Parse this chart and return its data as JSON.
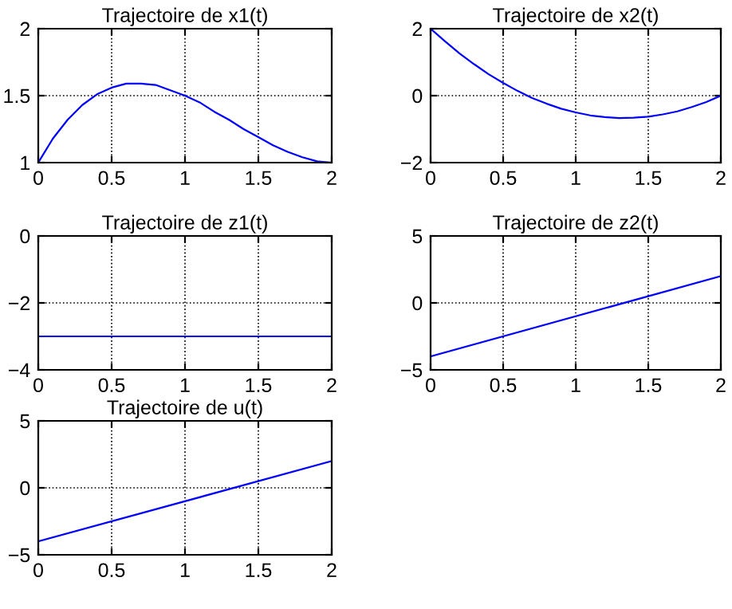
{
  "chart_data": [
    {
      "type": "line",
      "title": "Trajectoire de x1(t)",
      "x": [
        0,
        0.1,
        0.2,
        0.3,
        0.4,
        0.5,
        0.6,
        0.7,
        0.8,
        0.9,
        1.0,
        1.1,
        1.2,
        1.3,
        1.4,
        1.5,
        1.6,
        1.7,
        1.8,
        1.9,
        2.0
      ],
      "series": [
        {
          "color": "#0000ff",
          "values": [
            1,
            1.18,
            1.32,
            1.43,
            1.51,
            1.56,
            1.59,
            1.59,
            1.58,
            1.54,
            1.5,
            1.45,
            1.38,
            1.32,
            1.25,
            1.19,
            1.13,
            1.08,
            1.04,
            1.01,
            1
          ]
        }
      ],
      "xlim": [
        0,
        2
      ],
      "xticks": [
        0,
        0.5,
        1,
        1.5,
        2
      ],
      "ylim": [
        1,
        2
      ],
      "yticks": [
        1,
        1.5,
        2
      ],
      "grid": true,
      "line_style": "solid",
      "marker": "none",
      "legend": false
    },
    {
      "type": "line",
      "title": "Trajectoire de x2(t)",
      "x": [
        0,
        0.1,
        0.2,
        0.3,
        0.4,
        0.5,
        0.6,
        0.7,
        0.8,
        0.9,
        1.0,
        1.1,
        1.2,
        1.3,
        1.4,
        1.5,
        1.6,
        1.7,
        1.8,
        1.9,
        2.0
      ],
      "series": [
        {
          "color": "#0000ff",
          "values": [
            2,
            1.62,
            1.26,
            0.94,
            0.64,
            0.38,
            0.14,
            -0.07,
            -0.24,
            -0.39,
            -0.5,
            -0.59,
            -0.64,
            -0.67,
            -0.66,
            -0.63,
            -0.56,
            -0.47,
            -0.34,
            -0.19,
            0
          ]
        }
      ],
      "xlim": [
        0,
        2
      ],
      "xticks": [
        0,
        0.5,
        1,
        1.5,
        2
      ],
      "ylim": [
        -2,
        2
      ],
      "yticks": [
        {
          "value": -2,
          "label": "−2"
        },
        0,
        2
      ],
      "grid": true,
      "line_style": "solid",
      "marker": "none",
      "legend": false
    },
    {
      "type": "line",
      "title": "Trajectoire de z1(t)",
      "x": [
        0,
        2
      ],
      "series": [
        {
          "color": "#0000ff",
          "values": [
            -3,
            -3
          ]
        }
      ],
      "xlim": [
        0,
        2
      ],
      "xticks": [
        0,
        0.5,
        1,
        1.5,
        2
      ],
      "ylim": [
        -4,
        0
      ],
      "yticks": [
        {
          "value": -4,
          "label": "−4"
        },
        {
          "value": -2,
          "label": "−2"
        },
        0
      ],
      "grid": true,
      "line_style": "solid",
      "marker": "none",
      "legend": false
    },
    {
      "type": "line",
      "title": "Trajectoire de z2(t)",
      "x": [
        0,
        2
      ],
      "series": [
        {
          "color": "#0000ff",
          "values": [
            -4,
            2
          ]
        }
      ],
      "xlim": [
        0,
        2
      ],
      "xticks": [
        0,
        0.5,
        1,
        1.5,
        2
      ],
      "ylim": [
        -5,
        5
      ],
      "yticks": [
        {
          "value": -5,
          "label": "−5"
        },
        0,
        5
      ],
      "grid": true,
      "line_style": "solid",
      "marker": "none",
      "legend": false
    },
    {
      "type": "line",
      "title": "Trajectoire de u(t)",
      "x": [
        0,
        2
      ],
      "series": [
        {
          "color": "#0000ff",
          "values": [
            -4,
            2
          ]
        }
      ],
      "xlim": [
        0,
        2
      ],
      "xticks": [
        0,
        0.5,
        1,
        1.5,
        2
      ],
      "ylim": [
        -5,
        5
      ],
      "yticks": [
        {
          "value": -5,
          "label": "−5"
        },
        0,
        5
      ],
      "grid": true,
      "line_style": "solid",
      "marker": "none",
      "legend": false
    }
  ]
}
